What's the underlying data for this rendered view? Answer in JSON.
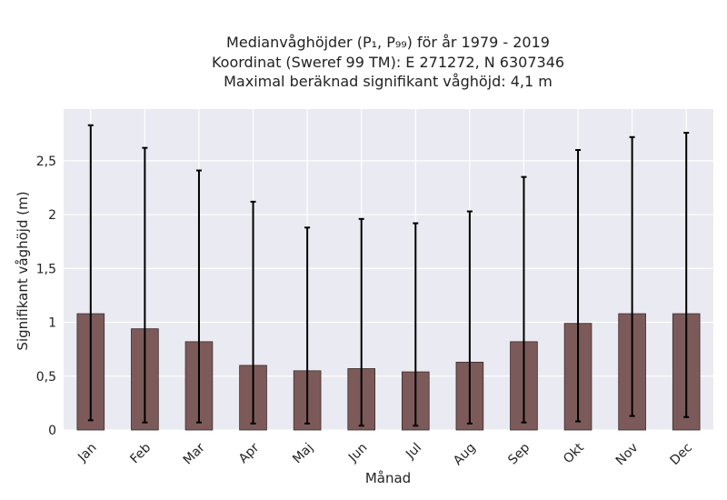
{
  "chart_data": {
    "type": "bar",
    "title_lines": [
      "Medianvåghöjder (P₁, P₉₉) för år 1979 - 2019",
      "Koordinat (Sweref 99 TM): E 271272, N 6307346",
      "Maximal beräknad signifikant våghöjd: 4,1 m"
    ],
    "xlabel": "Månad",
    "ylabel": "Signifikant våghöjd (m)",
    "categories": [
      "Jan",
      "Feb",
      "Mar",
      "Apr",
      "Maj",
      "Jun",
      "Jul",
      "Aug",
      "Sep",
      "Okt",
      "Nov",
      "Dec"
    ],
    "values": [
      1.08,
      0.94,
      0.82,
      0.6,
      0.55,
      0.57,
      0.54,
      0.63,
      0.82,
      0.99,
      1.08,
      1.08
    ],
    "error_low": [
      0.09,
      0.07,
      0.07,
      0.06,
      0.06,
      0.04,
      0.04,
      0.06,
      0.07,
      0.08,
      0.13,
      0.12
    ],
    "error_high": [
      2.83,
      2.62,
      2.41,
      2.12,
      1.88,
      1.96,
      1.92,
      2.03,
      2.35,
      2.6,
      2.72,
      2.76
    ],
    "yticks": [
      0,
      0.5,
      1,
      1.5,
      2,
      2.5
    ],
    "ytick_labels": [
      "0",
      "0,5",
      "1",
      "1,5",
      "2",
      "2,5"
    ],
    "ylim": [
      0,
      2.98
    ],
    "grid": true,
    "colors": {
      "bar_fill": "#7d5a5a",
      "bar_edge": "#3a2a2a",
      "plot_bg": "#eaeaf2",
      "grid": "#ffffff",
      "errorbar": "#000000"
    }
  }
}
